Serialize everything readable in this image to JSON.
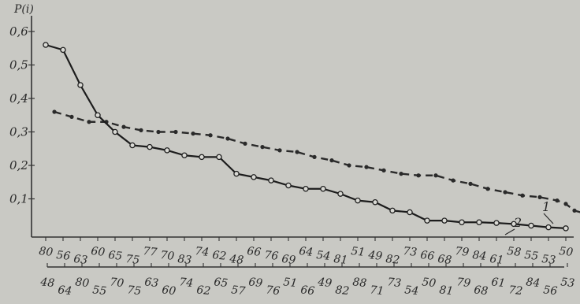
{
  "chart_data": {
    "type": "line",
    "ylabel": "P(i)",
    "ylim": [
      0,
      0.6
    ],
    "yticks": [
      "0,1",
      "0,2",
      "0,3",
      "0,4",
      "0,5",
      "0,6"
    ],
    "ytick_values": [
      0.1,
      0.2,
      0.3,
      0.4,
      0.5,
      0.6
    ],
    "x_rows": [
      {
        "labels": [
          "80",
          "56",
          "63",
          "60",
          "65",
          "75",
          "77",
          "70",
          "83",
          "74",
          "62",
          "48",
          "66",
          "76",
          "69",
          "64",
          "54",
          "81",
          "51",
          "49",
          "82",
          "73",
          "66",
          "68",
          "79",
          "84",
          "61",
          "58",
          "55",
          "53",
          "50"
        ]
      },
      {
        "labels": [
          "48",
          "64",
          "80",
          "55",
          "70",
          "75",
          "63",
          "60",
          "74",
          "62",
          "65",
          "57",
          "69",
          "76",
          "51",
          "66",
          "49",
          "82",
          "88",
          "71",
          "73",
          "54",
          "50",
          "81",
          "79",
          "68",
          "61",
          "72",
          "84",
          "56",
          "53"
        ]
      }
    ],
    "series": [
      {
        "name": "1",
        "style": "dashed",
        "color": "#2b2b2b",
        "values": [
          0.36,
          0.345,
          0.33,
          0.33,
          0.315,
          0.305,
          0.3,
          0.3,
          0.295,
          0.29,
          0.28,
          0.265,
          0.255,
          0.245,
          0.24,
          0.225,
          0.215,
          0.2,
          0.195,
          0.185,
          0.175,
          0.17,
          0.17,
          0.155,
          0.145,
          0.13,
          0.12,
          0.11,
          0.105,
          0.095,
          0.085,
          0.065,
          0.055
        ],
        "x_index": [
          0.5,
          1.5,
          2.5,
          3.5,
          4.5,
          5.5,
          6.5,
          7.5,
          8.5,
          9.5,
          10.5,
          11.5,
          12.5,
          13.5,
          14.5,
          15.5,
          16.5,
          17.5,
          18.5,
          19.5,
          20.5,
          21.5,
          22.5,
          23.5,
          24.5,
          25.5,
          26.5,
          27.5,
          28.5,
          29.5,
          30.0,
          30.5,
          31.2
        ]
      },
      {
        "name": "2",
        "style": "solid",
        "color": "#1f1f1f",
        "values": [
          0.56,
          0.545,
          0.44,
          0.35,
          0.3,
          0.26,
          0.255,
          0.245,
          0.23,
          0.225,
          0.225,
          0.175,
          0.165,
          0.155,
          0.14,
          0.13,
          0.13,
          0.115,
          0.095,
          0.09,
          0.065,
          0.06,
          0.035,
          0.035,
          0.03,
          0.03,
          0.028,
          0.025,
          0.02,
          0.015,
          0.012
        ],
        "x_index": [
          0,
          1,
          2,
          3,
          4,
          5,
          6,
          7,
          8,
          9,
          10,
          11,
          12,
          13,
          14,
          15,
          16,
          17,
          18,
          19,
          20,
          21,
          22,
          23,
          24,
          25,
          26,
          27,
          28,
          29,
          30
        ]
      }
    ],
    "grid": false
  }
}
